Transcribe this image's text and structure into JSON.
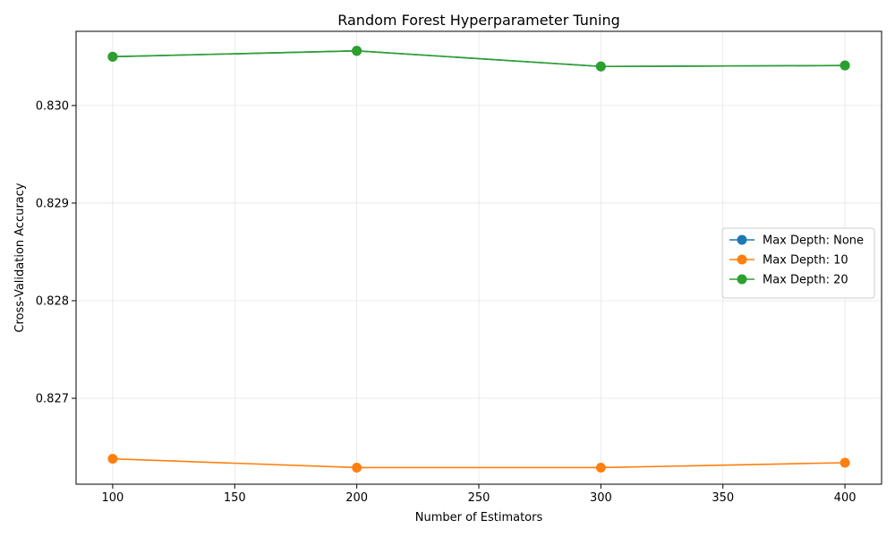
{
  "chart_data": {
    "type": "line",
    "title": "Random Forest Hyperparameter Tuning",
    "xlabel": "Number of Estimators",
    "ylabel": "Cross-Validation Accuracy",
    "x": [
      100,
      200,
      300,
      400
    ],
    "xlim": [
      85,
      415
    ],
    "ylim": [
      0.82612,
      0.83076
    ],
    "xticks": [
      100,
      150,
      200,
      250,
      300,
      350,
      400
    ],
    "xtick_labels": [
      "100",
      "150",
      "200",
      "250",
      "300",
      "350",
      "400"
    ],
    "yticks": [
      0.827,
      0.828,
      0.829,
      0.83
    ],
    "ytick_labels": [
      "0.827",
      "0.828",
      "0.829",
      "0.830"
    ],
    "grid": true,
    "legend_position": "center-right",
    "series": [
      {
        "name": "Max Depth: None",
        "color": "#1f77b4",
        "values": [
          0.8305,
          0.83056,
          0.8304,
          0.83041
        ]
      },
      {
        "name": "Max Depth: 10",
        "color": "#ff7f0e",
        "values": [
          0.82638,
          0.82629,
          0.82629,
          0.82634
        ]
      },
      {
        "name": "Max Depth: 20",
        "color": "#2ca02c",
        "values": [
          0.8305,
          0.83056,
          0.8304,
          0.83041
        ]
      }
    ]
  }
}
